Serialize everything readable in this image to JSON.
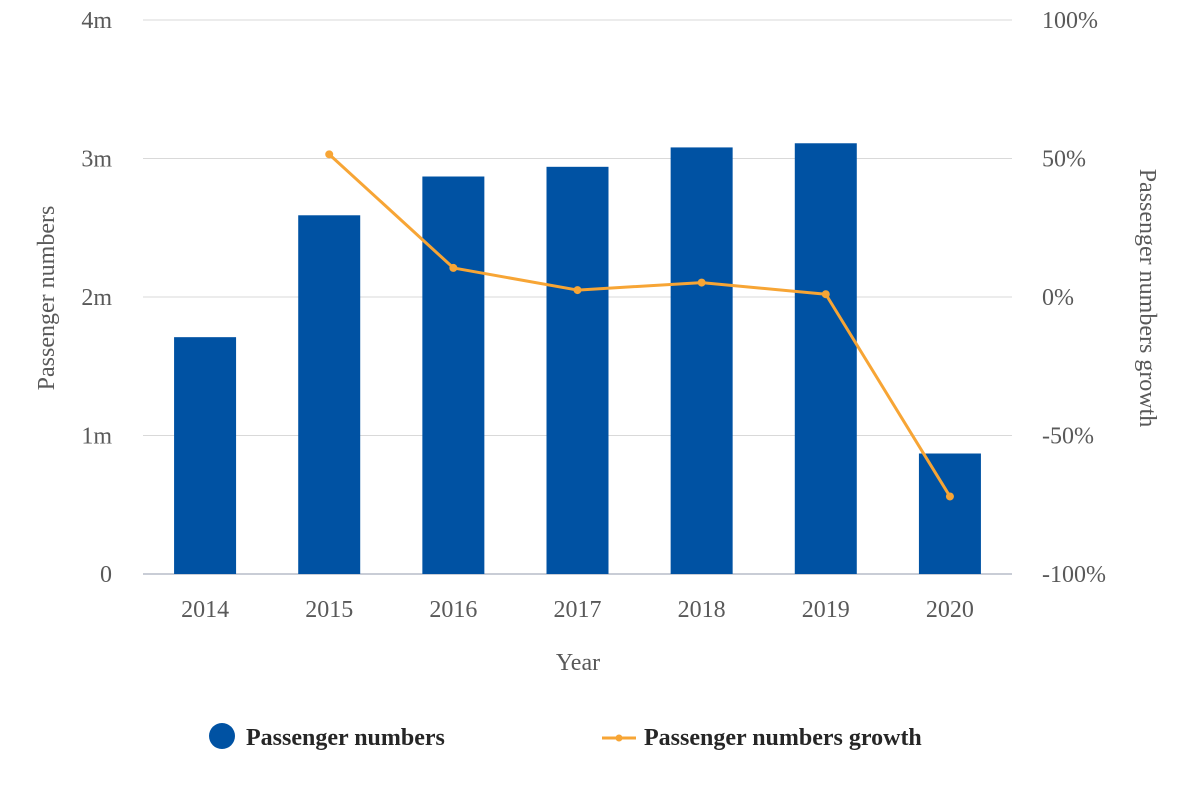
{
  "chart_data": {
    "type": "bar",
    "categories": [
      "2014",
      "2015",
      "2016",
      "2017",
      "2018",
      "2019",
      "2020"
    ],
    "series": [
      {
        "name": "Passenger numbers",
        "kind": "bar",
        "axis": "left",
        "color": "#0052A3",
        "values": [
          1.71,
          2.59,
          2.87,
          2.94,
          3.08,
          3.11,
          0.87
        ]
      },
      {
        "name": "Passenger numbers growth",
        "kind": "line",
        "axis": "right",
        "color": "#F7A535",
        "values": [
          null,
          51.5,
          10.5,
          2.5,
          5.2,
          1.0,
          -72
        ]
      }
    ],
    "xlabel": "Year",
    "ylabel": "Passenger numbers",
    "ylabel_right": "Passenger numbers growth",
    "ylim": [
      0,
      4
    ],
    "ylim_right": [
      -100,
      100
    ],
    "yticks": [
      "0",
      "1m",
      "2m",
      "3m",
      "4m"
    ],
    "yticks_right": [
      "-100%",
      "-50%",
      "0%",
      "50%",
      "100%"
    ],
    "grid": true,
    "legend": "bottom"
  }
}
